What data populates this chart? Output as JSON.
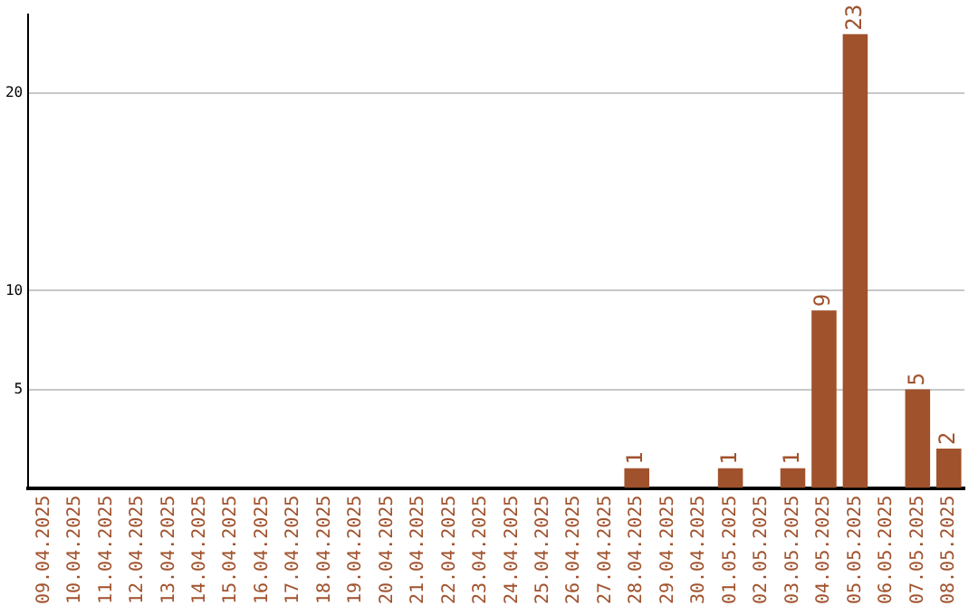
{
  "chart_data": {
    "type": "bar",
    "categories": [
      "09.04.2025",
      "10.04.2025",
      "11.04.2025",
      "12.04.2025",
      "13.04.2025",
      "14.04.2025",
      "15.04.2025",
      "16.04.2025",
      "17.04.2025",
      "18.04.2025",
      "19.04.2025",
      "20.04.2025",
      "21.04.2025",
      "22.04.2025",
      "23.04.2025",
      "24.04.2025",
      "25.04.2025",
      "26.04.2025",
      "27.04.2025",
      "28.04.2025",
      "29.04.2025",
      "30.04.2025",
      "01.05.2025",
      "02.05.2025",
      "03.05.2025",
      "04.05.2025",
      "05.05.2025",
      "06.05.2025",
      "07.05.2025",
      "08.05.2025"
    ],
    "values": [
      0,
      0,
      0,
      0,
      0,
      0,
      0,
      0,
      0,
      0,
      0,
      0,
      0,
      0,
      0,
      0,
      0,
      0,
      0,
      1,
      0,
      0,
      1,
      0,
      1,
      9,
      23,
      0,
      5,
      2
    ],
    "value_labels": [
      null,
      null,
      null,
      null,
      null,
      null,
      null,
      null,
      null,
      null,
      null,
      null,
      null,
      null,
      null,
      null,
      null,
      null,
      null,
      "1",
      null,
      null,
      "1",
      null,
      "1",
      "9",
      "23",
      null,
      "5",
      "2"
    ],
    "color": "#a0522d",
    "ylim": [
      0,
      24
    ],
    "yticks": [
      5,
      10,
      20
    ],
    "grid": "y",
    "legend": false
  }
}
